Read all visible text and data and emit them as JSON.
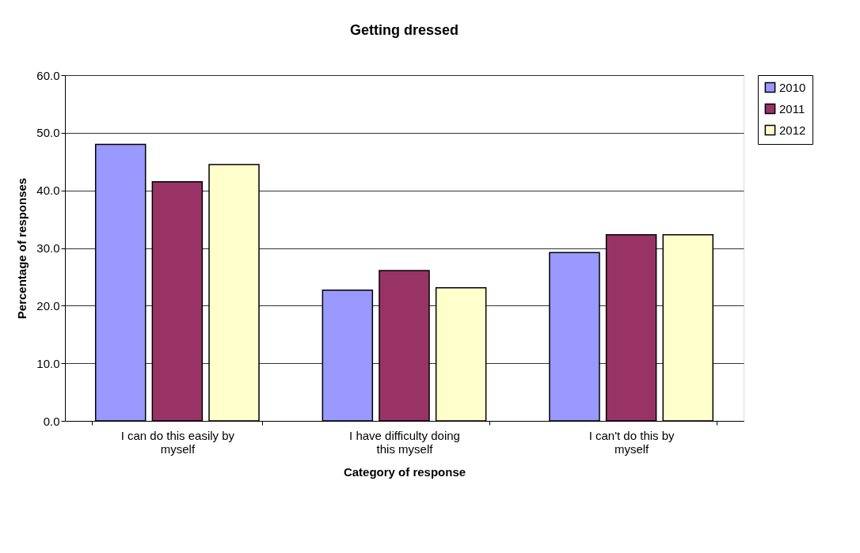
{
  "chart_data": {
    "type": "bar",
    "title": "Getting dressed",
    "xlabel": "Category of response",
    "ylabel": "Percentage of responses",
    "categories": [
      "I can do this easily by myself",
      "I have difficulty doing this myself",
      "I can't do this by myself"
    ],
    "series": [
      {
        "name": "2010",
        "color": "#9999ff",
        "values": [
          48.0,
          22.7,
          29.2
        ]
      },
      {
        "name": "2011",
        "color": "#993366",
        "values": [
          41.5,
          26.1,
          32.3
        ]
      },
      {
        "name": "2012",
        "color": "#ffffcc",
        "values": [
          44.5,
          23.1,
          32.3
        ]
      }
    ],
    "ylim": [
      0,
      60
    ],
    "yticks": [
      {
        "value": 0,
        "label": "0.0"
      },
      {
        "value": 10,
        "label": "10.0"
      },
      {
        "value": 20,
        "label": "20.0"
      },
      {
        "value": 30,
        "label": "30.0"
      },
      {
        "value": 40,
        "label": "40.0"
      },
      {
        "value": 50,
        "label": "50.0"
      },
      {
        "value": 60,
        "label": "60.0"
      }
    ],
    "grid": "y",
    "legend": "right"
  }
}
